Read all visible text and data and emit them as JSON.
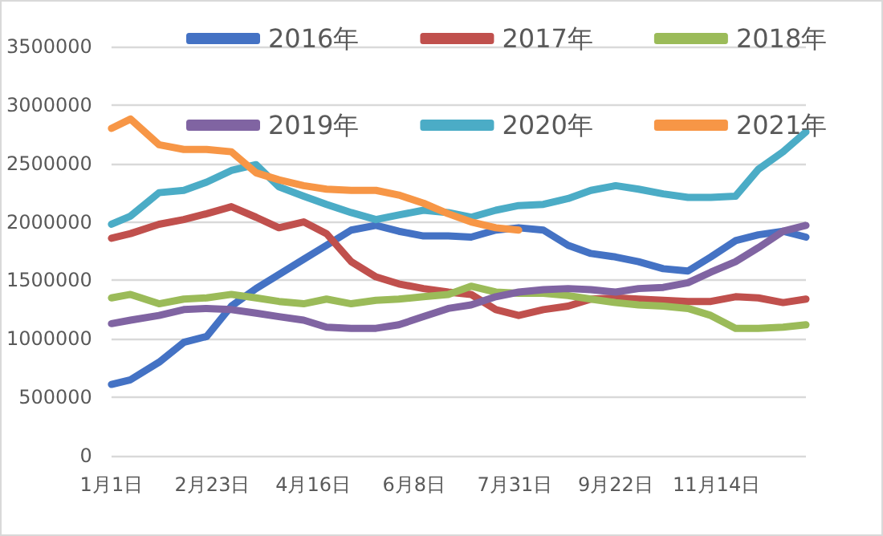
{
  "chart_data": {
    "type": "line",
    "x": [
      "--01-01",
      "--01-11",
      "--01-26",
      "--02-08",
      "--02-20",
      "--03-04",
      "--03-17",
      "--03-29",
      "--04-11",
      "--04-23",
      "--05-06",
      "--05-19",
      "--05-31",
      "--06-13",
      "--06-26",
      "--07-08",
      "--07-21",
      "--08-02",
      "--08-15",
      "--08-28",
      "--09-09",
      "--09-22",
      "--10-04",
      "--10-17",
      "--10-30",
      "--11-11",
      "--11-24",
      "--12-06",
      "--12-19",
      "--12-31"
    ],
    "series": [
      {
        "name": "2016年",
        "color": "#4472c4",
        "values": [
          610000,
          650000,
          800000,
          970000,
          1020000,
          1280000,
          1430000,
          1550000,
          1680000,
          1800000,
          1930000,
          1970000,
          1920000,
          1880000,
          1880000,
          1870000,
          1930000,
          1950000,
          1930000,
          1800000,
          1730000,
          1700000,
          1660000,
          1600000,
          1580000,
          1700000,
          1840000,
          1890000,
          1920000,
          1870000
        ]
      },
      {
        "name": "2017年",
        "color": "#c0504d",
        "values": [
          1860000,
          1900000,
          1980000,
          2020000,
          2070000,
          2130000,
          2040000,
          1950000,
          2000000,
          1900000,
          1660000,
          1530000,
          1470000,
          1430000,
          1400000,
          1380000,
          1250000,
          1200000,
          1250000,
          1280000,
          1340000,
          1350000,
          1340000,
          1330000,
          1320000,
          1320000,
          1360000,
          1350000,
          1310000,
          1340000
        ]
      },
      {
        "name": "2018年",
        "color": "#9bbb59",
        "values": [
          1350000,
          1380000,
          1300000,
          1340000,
          1350000,
          1380000,
          1350000,
          1320000,
          1300000,
          1340000,
          1300000,
          1330000,
          1340000,
          1360000,
          1380000,
          1450000,
          1400000,
          1390000,
          1390000,
          1370000,
          1340000,
          1310000,
          1290000,
          1280000,
          1260000,
          1200000,
          1090000,
          1090000,
          1100000,
          1120000
        ]
      },
      {
        "name": "2019年",
        "color": "#8064a2",
        "values": [
          1130000,
          1160000,
          1200000,
          1250000,
          1260000,
          1250000,
          1220000,
          1190000,
          1160000,
          1100000,
          1090000,
          1090000,
          1120000,
          1190000,
          1260000,
          1290000,
          1360000,
          1400000,
          1420000,
          1430000,
          1420000,
          1400000,
          1430000,
          1440000,
          1480000,
          1570000,
          1660000,
          1780000,
          1920000,
          1970000
        ]
      },
      {
        "name": "2020年",
        "color": "#4bacc6",
        "values": [
          1980000,
          2050000,
          2250000,
          2270000,
          2340000,
          2440000,
          2490000,
          2300000,
          2220000,
          2150000,
          2080000,
          2020000,
          2060000,
          2100000,
          2080000,
          2040000,
          2100000,
          2140000,
          2150000,
          2200000,
          2270000,
          2310000,
          2280000,
          2240000,
          2210000,
          2210000,
          2220000,
          2450000,
          2600000,
          2770000
        ]
      },
      {
        "name": "2021年",
        "color": "#f79646",
        "values": [
          2800000,
          2880000,
          2660000,
          2620000,
          2620000,
          2600000,
          2420000,
          2360000,
          2310000,
          2280000,
          2270000,
          2270000,
          2230000,
          2160000,
          2070000,
          2000000,
          1950000,
          1930000,
          null,
          null,
          null,
          null,
          null,
          null,
          null,
          null,
          null,
          null,
          null,
          null
        ]
      }
    ],
    "xlim": [
      "--01-01",
      "--12-31"
    ],
    "xticks": [
      {
        "value": "--01-01",
        "label": "1月1日"
      },
      {
        "value": "--02-23",
        "label": "2月23日"
      },
      {
        "value": "--04-16",
        "label": "4月16日"
      },
      {
        "value": "--06-08",
        "label": "6月8日"
      },
      {
        "value": "--07-31",
        "label": "7月31日"
      },
      {
        "value": "--09-22",
        "label": "9月22日"
      },
      {
        "value": "--11-14",
        "label": "11月14日"
      }
    ],
    "ylim": [
      0,
      3500000
    ],
    "yticks": [
      0,
      500000,
      1000000,
      1500000,
      2000000,
      2500000,
      3000000,
      3500000
    ],
    "grid": "y",
    "legend": "top",
    "marker": "none",
    "line_style": "solid"
  }
}
